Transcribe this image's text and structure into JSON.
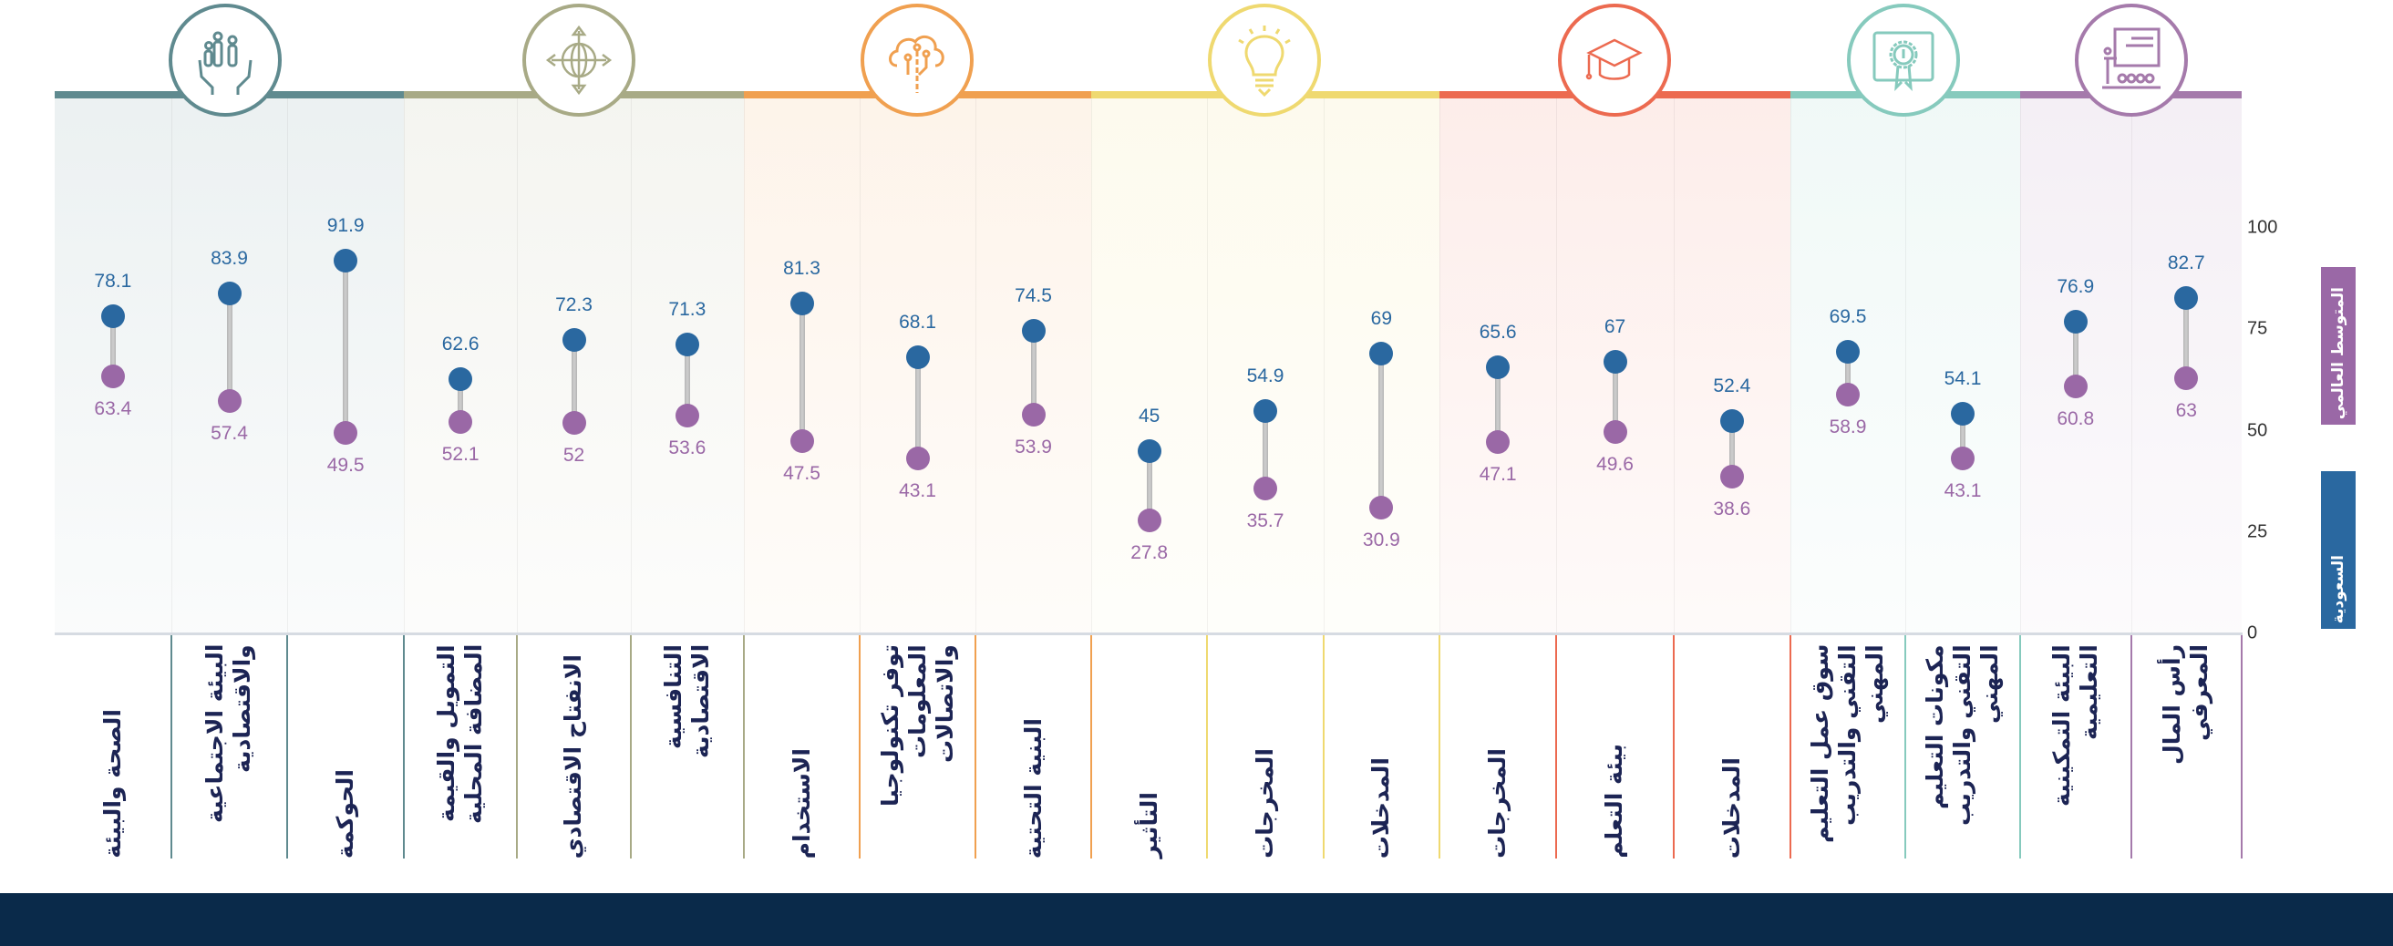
{
  "chart_data": {
    "type": "dumbbell",
    "ylim": [
      0,
      100
    ],
    "yticks": [
      "0",
      "25",
      "50",
      "75",
      "100"
    ],
    "grid": false,
    "legend_placement": "right",
    "series": [
      {
        "name": "السعودية",
        "color": "#2a68a0",
        "values": [
          78.1,
          83.9,
          91.9,
          62.6,
          72.3,
          71.3,
          81.3,
          68.1,
          74.5,
          45,
          54.9,
          69,
          65.6,
          67,
          52.4,
          69.5,
          54.1,
          76.9,
          82.7
        ]
      },
      {
        "name": "المتوسط العالمي",
        "color": "#9a68a6",
        "values": [
          63.4,
          57.4,
          49.5,
          52.1,
          52,
          53.6,
          47.5,
          43.1,
          53.9,
          27.8,
          35.7,
          30.9,
          47.1,
          49.6,
          38.6,
          58.9,
          43.1,
          60.8,
          63
        ]
      }
    ],
    "categories": [
      "الصحة والبيئة",
      "البيئة الاجتماعية والاقتصادية",
      "الحوكمة",
      "التمويل والقيمة المضافة المحلية",
      "الانفتاح الاقتصادي",
      "التنافسية الاقتصادية",
      "الاستخدام",
      "توفر تكنولوجيا المعلومات والاتصالات",
      "البنية التحتية",
      "التأثير",
      "المخرجات",
      "المدخلات",
      "المخرجات",
      "بيئة التعلم",
      "المدخلات",
      "سوق عمل التعليم التقني والتدريب المهني",
      "مكونات التعليم التقني والتدريب المهني",
      "البيئة التمكينية التعليمية",
      "رأس المال المعرفي"
    ],
    "groups": [
      {
        "icon": "people-in-hands-icon",
        "color": "#5f8a8f",
        "columns": 3
      },
      {
        "icon": "globe-arrows-icon",
        "color": "#a8aa86",
        "columns": 3
      },
      {
        "icon": "cloud-circuit-icon",
        "color": "#f0a050",
        "columns": 3
      },
      {
        "icon": "lightbulb-icon",
        "color": "#efd970",
        "columns": 3
      },
      {
        "icon": "graduation-cap-icon",
        "color": "#ec6a50",
        "columns": 3
      },
      {
        "icon": "certificate-icon",
        "color": "#86cabd",
        "columns": 2
      },
      {
        "icon": "classroom-presentation-icon",
        "color": "#a57aab",
        "columns": 2
      }
    ]
  },
  "footer_color": "#0a2a4a"
}
